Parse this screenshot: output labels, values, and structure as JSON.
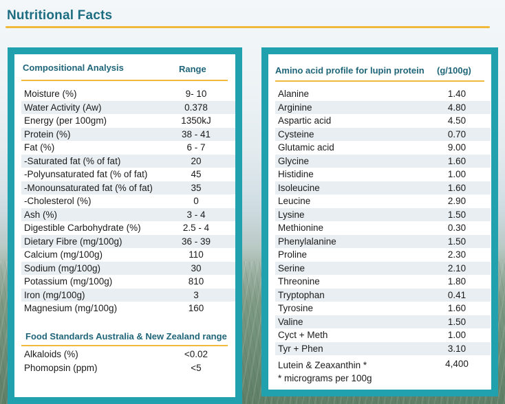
{
  "page": {
    "title": "Nutritional Facts"
  },
  "left_panel": {
    "header": "Compositional Analysis",
    "range_header": "Range",
    "rows": [
      {
        "label": "Moisture (%)",
        "value": "9- 10"
      },
      {
        "label": "Water Activity (Aw)",
        "value": "0.378"
      },
      {
        "label": "Energy (per 100gm)",
        "value": "1350kJ"
      },
      {
        "label": "Protein (%)",
        "value": "38 - 41"
      },
      {
        "label": "Fat (%)",
        "value": "6 - 7"
      },
      {
        "label": " -Saturated fat (% of fat)",
        "value": "20"
      },
      {
        "label": " -Polyunsaturated fat (% of fat)",
        "value": "45"
      },
      {
        "label": " -Monounsaturated fat (% of fat)",
        "value": "35"
      },
      {
        "label": " -Cholesterol (%)",
        "value": "0"
      },
      {
        "label": "Ash (%)",
        "value": "3 - 4"
      },
      {
        "label": "Digestible Carbohydrate (%)",
        "value": "2.5 - 4"
      },
      {
        "label": "Dietary Fibre (mg/100g)",
        "value": "36 - 39"
      },
      {
        "label": "Calcium (mg/100g)",
        "value": "110"
      },
      {
        "label": "Sodium (mg/100g)",
        "value": "30"
      },
      {
        "label": "Potassium (mg/100g)",
        "value": "810"
      },
      {
        "label": "Iron (mg/100g)",
        "value": "3"
      },
      {
        "label": "Magnesium (mg/100g)",
        "value": "160"
      }
    ],
    "standards_header": "Food Standards Australia & New Zealand range",
    "standards_rows": [
      {
        "label": "Alkaloids (%)",
        "value": "<0.02"
      },
      {
        "label": "Phomopsin (ppm)",
        "value": "<5"
      }
    ]
  },
  "right_panel": {
    "header": "Amino acid profile for lupin protein",
    "unit_header": "(g/100g)",
    "rows": [
      {
        "label": "Alanine",
        "value": "1.40"
      },
      {
        "label": "Arginine",
        "value": "4.80"
      },
      {
        "label": "Aspartic acid",
        "value": "4.50"
      },
      {
        "label": "Cysteine",
        "value": "0.70"
      },
      {
        "label": "Glutamic acid",
        "value": "9.00"
      },
      {
        "label": "Glycine",
        "value": "1.60"
      },
      {
        "label": "Histidine",
        "value": "1.00"
      },
      {
        "label": "Isoleucine",
        "value": "1.60"
      },
      {
        "label": "Leucine",
        "value": "2.90"
      },
      {
        "label": "Lysine",
        "value": "1.50"
      },
      {
        "label": "Methionine",
        "value": "0.30"
      },
      {
        "label": "Phenylalanine",
        "value": "1.50"
      },
      {
        "label": "Proline",
        "value": "2.30"
      },
      {
        "label": "Serine",
        "value": "2.10"
      },
      {
        "label": "Threonine",
        "value": "1.80"
      },
      {
        "label": "Tryptophan",
        "value": "0.41"
      },
      {
        "label": "Tyrosine",
        "value": "1.60"
      },
      {
        "label": "Valine",
        "value": "1.50"
      },
      {
        "label": "Cyct + Meth",
        "value": "1.00"
      },
      {
        "label": "Tyr + Phen",
        "value": "3.10"
      }
    ],
    "lutein_label": "Lutein & Zeaxanthin *",
    "lutein_value": "4,400",
    "footnote": "* micrograms per 100g"
  },
  "colors": {
    "title": "#1d6d82",
    "accent_rule": "#f0b93a",
    "panel_border": "#21a0ae",
    "header_text": "#1f6579",
    "alt_row": "#e8eef2"
  }
}
